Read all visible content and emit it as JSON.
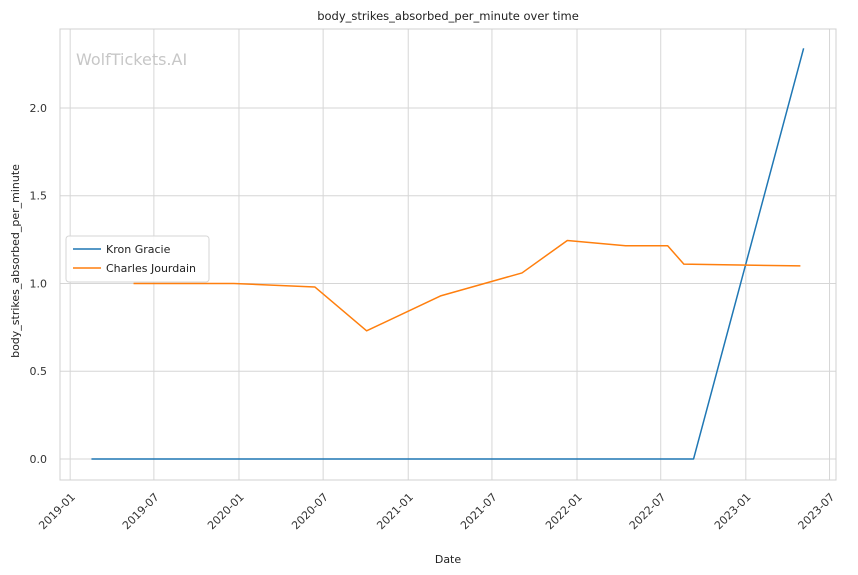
{
  "watermark": "WolfTickets.AI",
  "chart_data": {
    "type": "line",
    "title": "body_strikes_absorbed_per_minute over time",
    "xlabel": "Date",
    "ylabel": "body_strikes_absorbed_per_minute",
    "x_axis_type": "date",
    "xlim": [
      "2018-12-10",
      "2023-07-15"
    ],
    "ylim": [
      -0.12,
      2.45
    ],
    "x_ticks": [
      {
        "value": "2019-01-01",
        "label": "2019-01"
      },
      {
        "value": "2019-07-01",
        "label": "2019-07"
      },
      {
        "value": "2020-01-01",
        "label": "2020-01"
      },
      {
        "value": "2020-07-01",
        "label": "2020-07"
      },
      {
        "value": "2021-01-01",
        "label": "2021-01"
      },
      {
        "value": "2021-07-01",
        "label": "2021-07"
      },
      {
        "value": "2022-01-01",
        "label": "2022-01"
      },
      {
        "value": "2022-07-01",
        "label": "2022-07"
      },
      {
        "value": "2023-01-01",
        "label": "2023-01"
      },
      {
        "value": "2023-07-01",
        "label": "2023-07"
      }
    ],
    "y_ticks": [
      {
        "value": 0.0,
        "label": "0.0"
      },
      {
        "value": 0.5,
        "label": "0.5"
      },
      {
        "value": 1.0,
        "label": "1.0"
      },
      {
        "value": 1.5,
        "label": "1.5"
      },
      {
        "value": 2.0,
        "label": "2.0"
      }
    ],
    "grid": true,
    "legend_position": "center-left",
    "series": [
      {
        "name": "Kron Gracie",
        "color": "#1f77b4",
        "points": [
          {
            "x": "2019-02-16",
            "y": 0.0
          },
          {
            "x": "2022-09-10",
            "y": 0.0
          },
          {
            "x": "2023-05-06",
            "y": 2.34
          }
        ]
      },
      {
        "name": "Charles Jourdain",
        "color": "#ff7f0e",
        "points": [
          {
            "x": "2019-05-18",
            "y": 1.0
          },
          {
            "x": "2019-12-21",
            "y": 1.0
          },
          {
            "x": "2020-06-13",
            "y": 0.98
          },
          {
            "x": "2020-10-03",
            "y": 0.73
          },
          {
            "x": "2021-03-13",
            "y": 0.93
          },
          {
            "x": "2021-09-04",
            "y": 1.06
          },
          {
            "x": "2021-12-11",
            "y": 1.245
          },
          {
            "x": "2022-04-16",
            "y": 1.215
          },
          {
            "x": "2022-07-16",
            "y": 1.215
          },
          {
            "x": "2022-08-20",
            "y": 1.11
          },
          {
            "x": "2023-04-29",
            "y": 1.1
          }
        ]
      }
    ]
  }
}
